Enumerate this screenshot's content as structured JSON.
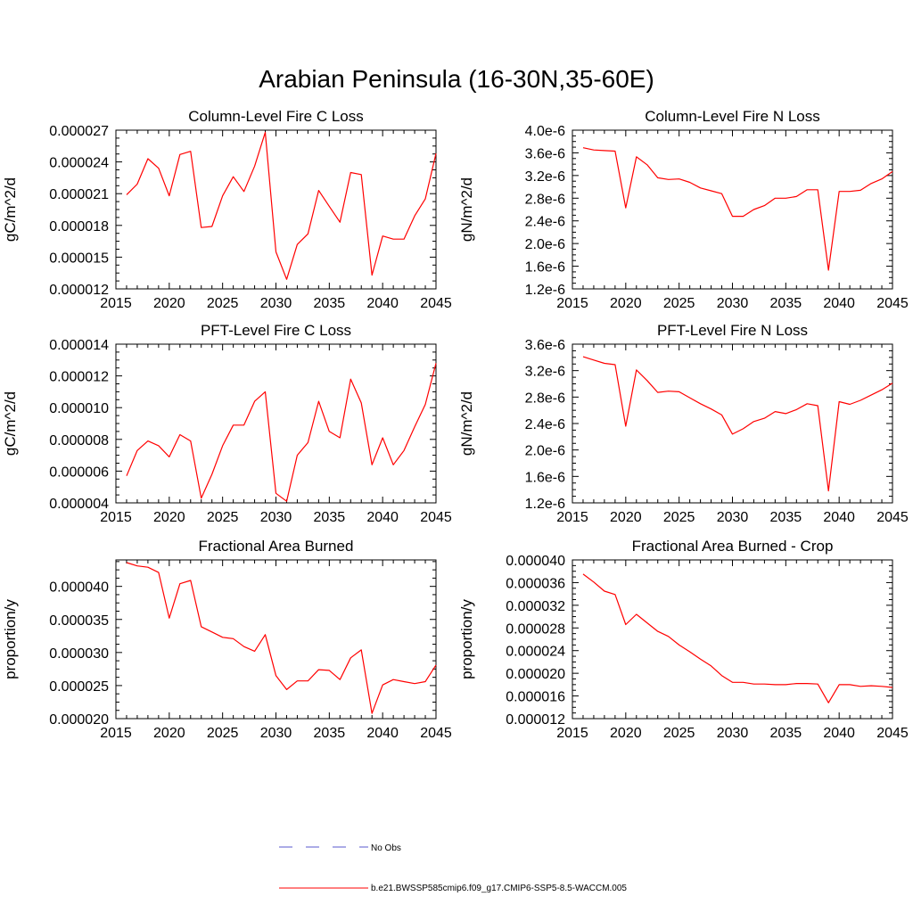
{
  "figure": {
    "title": "Arabian Peninsula (16-30N,35-60E)",
    "series_color": "#ff0000",
    "obs_color": "#5a5acd"
  },
  "legend": {
    "entries": [
      {
        "label": "No Obs",
        "style": "dashed",
        "color": "#5a5acd"
      },
      {
        "label": "b.e21.BWSSP585cmip6.f09_g17.CMIP6-SSP5-8.5-WACCM.005",
        "style": "solid",
        "color": "#ff0000"
      }
    ]
  },
  "chart_data": [
    {
      "type": "line",
      "title": "Column-Level Fire C Loss",
      "ylabel": "gC/m^2/d",
      "xlabel": "",
      "xlim": [
        2015,
        2045
      ],
      "ylim": [
        1.2e-05,
        2.7e-05
      ],
      "xticks": [
        2015,
        2020,
        2025,
        2030,
        2035,
        2040,
        2045
      ],
      "yticks": [
        1.2e-05,
        1.5e-05,
        1.8e-05,
        2.1e-05,
        2.4e-05,
        2.7e-05
      ],
      "ytick_labels": [
        "0.000012",
        "0.000015",
        "0.000018",
        "0.000021",
        "0.000024",
        "0.000027"
      ],
      "x": [
        2016,
        2017,
        2018,
        2019,
        2020,
        2021,
        2022,
        2023,
        2024,
        2025,
        2026,
        2027,
        2028,
        2029,
        2030,
        2031,
        2032,
        2033,
        2034,
        2035,
        2036,
        2037,
        2038,
        2039,
        2040,
        2041,
        2042,
        2043,
        2044,
        2045
      ],
      "series": [
        {
          "name": "b.e21.BWSSP585cmip6.f09_g17.CMIP6-SSP5-8.5-WACCM.005",
          "values": [
            2.09e-05,
            2.19e-05,
            2.43e-05,
            2.34e-05,
            2.08e-05,
            2.47e-05,
            2.5e-05,
            1.78e-05,
            1.79e-05,
            2.08e-05,
            2.26e-05,
            2.12e-05,
            2.36e-05,
            2.68e-05,
            1.55e-05,
            1.29e-05,
            1.62e-05,
            1.72e-05,
            2.13e-05,
            1.98e-05,
            1.83e-05,
            2.3e-05,
            2.28e-05,
            1.33e-05,
            1.7e-05,
            1.67e-05,
            1.67e-05,
            1.89e-05,
            2.05e-05,
            2.48e-05
          ]
        }
      ]
    },
    {
      "type": "line",
      "title": "Column-Level Fire N Loss",
      "ylabel": "gN/m^2/d",
      "xlabel": "",
      "xlim": [
        2015,
        2045
      ],
      "ylim": [
        1.2e-06,
        4e-06
      ],
      "xticks": [
        2015,
        2020,
        2025,
        2030,
        2035,
        2040,
        2045
      ],
      "yticks": [
        1.2e-06,
        1.6e-06,
        2e-06,
        2.4e-06,
        2.8e-06,
        3.2e-06,
        3.6e-06,
        4e-06
      ],
      "ytick_labels": [
        "1.2e-6",
        "1.6e-6",
        "2.0e-6",
        "2.4e-6",
        "2.8e-6",
        "3.2e-6",
        "3.6e-6",
        "4.0e-6"
      ],
      "x": [
        2016,
        2017,
        2018,
        2019,
        2020,
        2021,
        2022,
        2023,
        2024,
        2025,
        2026,
        2027,
        2028,
        2029,
        2030,
        2031,
        2032,
        2033,
        2034,
        2035,
        2036,
        2037,
        2038,
        2039,
        2040,
        2041,
        2042,
        2043,
        2044,
        2045
      ],
      "series": [
        {
          "name": "b.e21.BWSSP585cmip6.f09_g17.CMIP6-SSP5-8.5-WACCM.005",
          "values": [
            3.69e-06,
            3.65e-06,
            3.64e-06,
            3.63e-06,
            2.63e-06,
            3.53e-06,
            3.39e-06,
            3.16e-06,
            3.13e-06,
            3.14e-06,
            3.08e-06,
            2.98e-06,
            2.93e-06,
            2.88e-06,
            2.48e-06,
            2.48e-06,
            2.6e-06,
            2.67e-06,
            2.8e-06,
            2.8e-06,
            2.83e-06,
            2.95e-06,
            2.95e-06,
            1.53e-06,
            2.92e-06,
            2.92e-06,
            2.94e-06,
            3.06e-06,
            3.14e-06,
            3.27e-06
          ]
        }
      ]
    },
    {
      "type": "line",
      "title": "PFT-Level Fire C Loss",
      "ylabel": "gC/m^2/d",
      "xlabel": "",
      "xlim": [
        2015,
        2045
      ],
      "ylim": [
        4e-06,
        1.4e-05
      ],
      "xticks": [
        2015,
        2020,
        2025,
        2030,
        2035,
        2040,
        2045
      ],
      "yticks": [
        4e-06,
        6e-06,
        8e-06,
        1e-05,
        1.2e-05,
        1.4e-05
      ],
      "ytick_labels": [
        "0.000004",
        "0.000006",
        "0.000008",
        "0.000010",
        "0.000012",
        "0.000014"
      ],
      "x": [
        2016,
        2017,
        2018,
        2019,
        2020,
        2021,
        2022,
        2023,
        2024,
        2025,
        2026,
        2027,
        2028,
        2029,
        2030,
        2031,
        2032,
        2033,
        2034,
        2035,
        2036,
        2037,
        2038,
        2039,
        2040,
        2041,
        2042,
        2043,
        2044,
        2045
      ],
      "series": [
        {
          "name": "b.e21.BWSSP585cmip6.f09_g17.CMIP6-SSP5-8.5-WACCM.005",
          "values": [
            5.7e-06,
            7.3e-06,
            7.9e-06,
            7.6e-06,
            6.9e-06,
            8.3e-06,
            7.9e-06,
            4.3e-06,
            5.8e-06,
            7.6e-06,
            8.9e-06,
            8.9e-06,
            1.04e-05,
            1.1e-05,
            4.6e-06,
            4.1e-06,
            7e-06,
            7.8e-06,
            1.04e-05,
            8.5e-06,
            8.1e-06,
            1.18e-05,
            1.03e-05,
            6.4e-06,
            8.1e-06,
            6.4e-06,
            7.3e-06,
            8.8e-06,
            1.02e-05,
            1.28e-05
          ]
        }
      ]
    },
    {
      "type": "line",
      "title": "PFT-Level Fire N Loss",
      "ylabel": "gN/m^2/d",
      "xlabel": "",
      "xlim": [
        2015,
        2045
      ],
      "ylim": [
        1.2e-06,
        3.6e-06
      ],
      "xticks": [
        2015,
        2020,
        2025,
        2030,
        2035,
        2040,
        2045
      ],
      "yticks": [
        1.2e-06,
        1.6e-06,
        2e-06,
        2.4e-06,
        2.8e-06,
        3.2e-06,
        3.6e-06
      ],
      "ytick_labels": [
        "1.2e-6",
        "1.6e-6",
        "2.0e-6",
        "2.4e-6",
        "2.8e-6",
        "3.2e-6",
        "3.6e-6"
      ],
      "x": [
        2016,
        2017,
        2018,
        2019,
        2020,
        2021,
        2022,
        2023,
        2024,
        2025,
        2026,
        2027,
        2028,
        2029,
        2030,
        2031,
        2032,
        2033,
        2034,
        2035,
        2036,
        2037,
        2038,
        2039,
        2040,
        2041,
        2042,
        2043,
        2044,
        2045
      ],
      "series": [
        {
          "name": "b.e21.BWSSP585cmip6.f09_g17.CMIP6-SSP5-8.5-WACCM.005",
          "values": [
            3.41e-06,
            3.36e-06,
            3.31e-06,
            3.29e-06,
            2.36e-06,
            3.21e-06,
            3.05e-06,
            2.87e-06,
            2.89e-06,
            2.88e-06,
            2.79e-06,
            2.7e-06,
            2.62e-06,
            2.53e-06,
            2.24e-06,
            2.32e-06,
            2.43e-06,
            2.48e-06,
            2.58e-06,
            2.55e-06,
            2.61e-06,
            2.7e-06,
            2.67e-06,
            1.38e-06,
            2.73e-06,
            2.69e-06,
            2.75e-06,
            2.83e-06,
            2.91e-06,
            3.01e-06
          ]
        }
      ]
    },
    {
      "type": "line",
      "title": "Fractional Area Burned",
      "ylabel": "proportion/y",
      "xlabel": "",
      "xlim": [
        2015,
        2045
      ],
      "ylim": [
        2e-05,
        4.4e-05
      ],
      "xticks": [
        2015,
        2020,
        2025,
        2030,
        2035,
        2040,
        2045
      ],
      "yticks": [
        2e-05,
        2.5e-05,
        3e-05,
        3.5e-05,
        4e-05
      ],
      "ytick_labels": [
        "0.000020",
        "0.000025",
        "0.000030",
        "0.000035",
        "0.000040"
      ],
      "x": [
        2016,
        2017,
        2018,
        2019,
        2020,
        2021,
        2022,
        2023,
        2024,
        2025,
        2026,
        2027,
        2028,
        2029,
        2030,
        2031,
        2032,
        2033,
        2034,
        2035,
        2036,
        2037,
        2038,
        2039,
        2040,
        2041,
        2042,
        2043,
        2044,
        2045
      ],
      "series": [
        {
          "name": "b.e21.BWSSP585cmip6.f09_g17.CMIP6-SSP5-8.5-WACCM.005",
          "values": [
            4.36e-05,
            4.31e-05,
            4.29e-05,
            4.21e-05,
            3.52e-05,
            4.04e-05,
            4.09e-05,
            3.39e-05,
            3.31e-05,
            3.23e-05,
            3.21e-05,
            3.09e-05,
            3.02e-05,
            3.27e-05,
            2.65e-05,
            2.44e-05,
            2.57e-05,
            2.57e-05,
            2.74e-05,
            2.73e-05,
            2.59e-05,
            2.92e-05,
            3.04e-05,
            2.08e-05,
            2.51e-05,
            2.59e-05,
            2.56e-05,
            2.53e-05,
            2.56e-05,
            2.81e-05
          ]
        }
      ]
    },
    {
      "type": "line",
      "title": "Fractional Area Burned - Crop",
      "ylabel": "proportion/y",
      "xlabel": "",
      "xlim": [
        2015,
        2045
      ],
      "ylim": [
        1.2e-05,
        4e-05
      ],
      "xticks": [
        2015,
        2020,
        2025,
        2030,
        2035,
        2040,
        2045
      ],
      "yticks": [
        1.2e-05,
        1.6e-05,
        2e-05,
        2.4e-05,
        2.8e-05,
        3.2e-05,
        3.6e-05,
        4e-05
      ],
      "ytick_labels": [
        "0.000012",
        "0.000016",
        "0.000020",
        "0.000024",
        "0.000028",
        "0.000032",
        "0.000036",
        "0.000040"
      ],
      "x": [
        2016,
        2017,
        2018,
        2019,
        2020,
        2021,
        2022,
        2023,
        2024,
        2025,
        2026,
        2027,
        2028,
        2029,
        2030,
        2031,
        2032,
        2033,
        2034,
        2035,
        2036,
        2037,
        2038,
        2039,
        2040,
        2041,
        2042,
        2043,
        2044,
        2045
      ],
      "series": [
        {
          "name": "b.e21.BWSSP585cmip6.f09_g17.CMIP6-SSP5-8.5-WACCM.005",
          "values": [
            3.75e-05,
            3.61e-05,
            3.45e-05,
            3.39e-05,
            2.86e-05,
            3.04e-05,
            2.89e-05,
            2.74e-05,
            2.65e-05,
            2.5e-05,
            2.38e-05,
            2.25e-05,
            2.13e-05,
            1.96e-05,
            1.84e-05,
            1.84e-05,
            1.81e-05,
            1.81e-05,
            1.8e-05,
            1.8e-05,
            1.82e-05,
            1.82e-05,
            1.81e-05,
            1.48e-05,
            1.8e-05,
            1.8e-05,
            1.77e-05,
            1.78e-05,
            1.77e-05,
            1.75e-05
          ]
        }
      ]
    }
  ]
}
